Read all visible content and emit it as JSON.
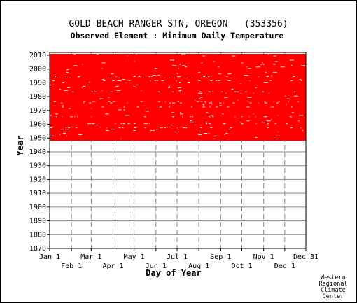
{
  "chart_data": {
    "type": "heatmap",
    "title": "GOLD BEACH RANGER STN, OREGON   (353356)",
    "subtitle": "Observed Element : Minimum Daily Temperature",
    "xlabel": "Day of Year",
    "ylabel": "Year",
    "ylim": [
      1870,
      2012
    ],
    "yticks": [
      2010,
      2000,
      1990,
      1980,
      1970,
      1960,
      1950,
      1940,
      1930,
      1920,
      1910,
      1900,
      1890,
      1880,
      1870
    ],
    "xticks_upper": [
      {
        "label": "Jan 1",
        "day": 1
      },
      {
        "label": "Mar 1",
        "day": 60
      },
      {
        "label": "May 1",
        "day": 121
      },
      {
        "label": "Jul 1",
        "day": 182
      },
      {
        "label": "Sep 1",
        "day": 244
      },
      {
        "label": "Nov 1",
        "day": 305
      },
      {
        "label": "Dec 31",
        "day": 365
      }
    ],
    "xticks_lower": [
      {
        "label": "Feb 1",
        "day": 32
      },
      {
        "label": "Apr 1",
        "day": 91
      },
      {
        "label": "Jun 1",
        "day": 152
      },
      {
        "label": "Aug 1",
        "day": 213
      },
      {
        "label": "Oct 1",
        "day": 274
      },
      {
        "label": "Dec 1",
        "day": 335
      }
    ],
    "data_color": "#ff0000",
    "grid": true,
    "grid_style": "dashed vertical lines at month starts, solid horizontal lines at decades",
    "record_years": [
      1948,
      2010
    ],
    "data_coverage": "observations present for most days from 1948 through 2010; scattered missing days shown as white gaps"
  },
  "credit": [
    "Western",
    "Regional",
    "Climate",
    "Center"
  ],
  "colors": {
    "data": "#ff0000",
    "grid": "#888888",
    "axis": "#000000",
    "background": "#ffffff"
  }
}
